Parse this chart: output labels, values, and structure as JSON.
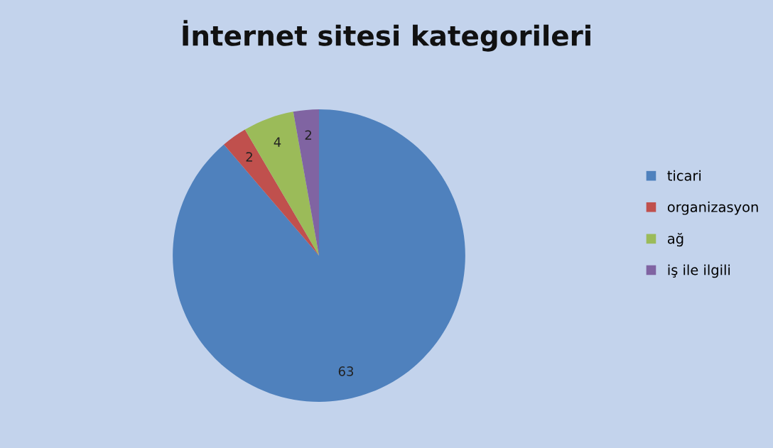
{
  "chart_data": {
    "type": "pie",
    "title": "İnternet sitesi kategorileri",
    "categories": [
      "ticari",
      "organizasyon",
      "ağ",
      "iş ile ilgili"
    ],
    "values": [
      63,
      2,
      4,
      2
    ],
    "colors": [
      "#4f81bd",
      "#c0504d",
      "#9bbb59",
      "#8064a2"
    ],
    "data_labels": true,
    "legend": "right"
  }
}
